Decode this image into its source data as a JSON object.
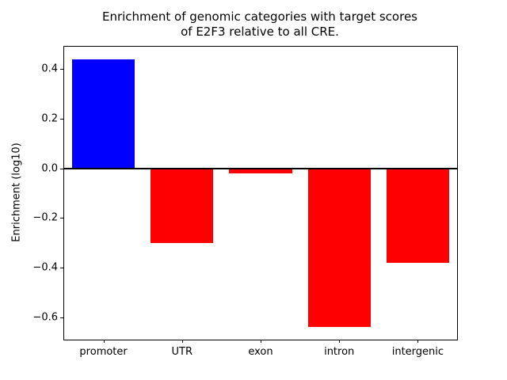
{
  "chart_data": {
    "type": "bar",
    "title_line1": "Enrichment of genomic categories with target scores",
    "title_line2": "of E2F3 relative to all CRE.",
    "ylabel": "Enrichment (log10)",
    "categories": [
      "promoter",
      "UTR",
      "exon",
      "intron",
      "intergenic"
    ],
    "values": [
      0.44,
      -0.3,
      -0.02,
      -0.64,
      -0.38
    ],
    "bar_colors": [
      "#0000ff",
      "#ff0000",
      "#ff0000",
      "#ff0000",
      "#ff0000"
    ],
    "positive_color": "#0000ff",
    "negative_color": "#ff0000",
    "ylim": [
      -0.69,
      0.49
    ],
    "yticks": [
      0.4,
      0.2,
      0.0,
      -0.2,
      -0.4,
      -0.6
    ],
    "zero_line": true,
    "grid": false,
    "legend": "none",
    "bar_width_fraction": 0.8
  }
}
